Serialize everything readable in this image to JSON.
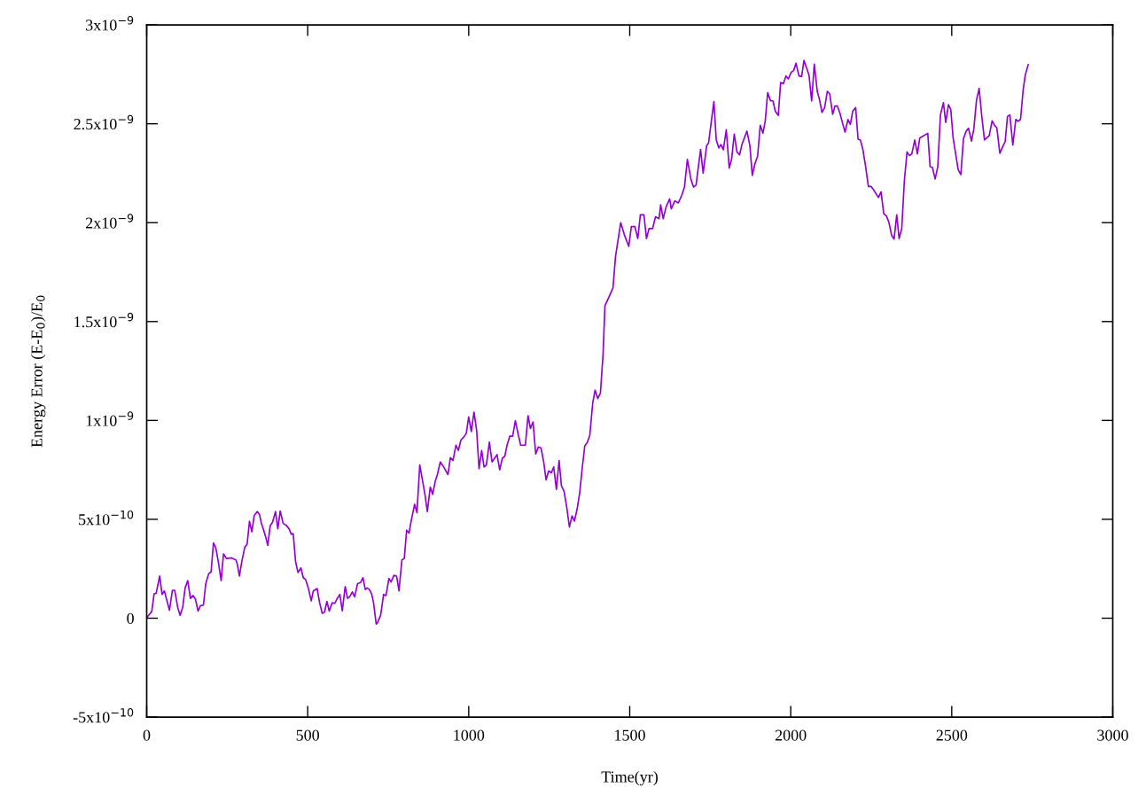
{
  "chart_data": {
    "type": "line",
    "xlabel": "Time(yr)",
    "ylabel": "Energy Error (E-E$_{0}$)/E$_{0}$",
    "xlim": [
      0,
      3000
    ],
    "xticks": [
      0,
      500,
      1000,
      1500,
      2000,
      2500,
      3000
    ],
    "ylim": [
      -5e-10,
      3e-09
    ],
    "yticks": [
      {
        "value": -5e-10,
        "label": "-5x10$^{−10}$"
      },
      0,
      {
        "value": 5e-10,
        "label": "5x10$^{−10}$"
      },
      {
        "value": 1e-09,
        "label": "1x10$^{−9}$"
      },
      {
        "value": 1.5e-09,
        "label": "1.5x10$^{−9}$"
      },
      {
        "value": 2e-09,
        "label": "2x10$^{−9}$"
      },
      {
        "value": 2.5e-09,
        "label": "2.5x10$^{−9}$"
      },
      {
        "value": 3e-09,
        "label": "3x10$^{−9}$"
      }
    ],
    "series": [
      {
        "color": "#9400d3",
        "x": [
          0,
          3.7,
          15.6,
          23.0,
          29.4,
          40.4,
          47.7,
          55.0,
          70.6,
          79.8,
          87.2,
          96.3,
          103.7,
          111.9,
          119.3,
          127.5,
          135.8,
          144.0,
          151.4,
          159.6,
          167.0,
          176.1,
          183.5,
          192.6,
          200.0,
          207.3,
          214.7,
          223.8,
          231.2,
          238.5,
          247.7,
          263.3,
          277.0,
          281.6,
          288.0,
          295.4,
          304.6,
          311.9,
          319.2,
          326.6,
          333.9,
          343.1,
          350.4,
          355.9,
          363.3,
          368.8,
          376.1,
          383.4,
          390.8,
          400.0,
          407.3,
          414.6,
          423.8,
          433.0,
          442.2,
          448.6,
          455.0,
          462.3,
          469.7,
          478.8,
          486.2,
          493.5,
          501.8,
          511.0,
          517.4,
          529.3,
          536.6,
          544.9,
          552.2,
          559.6,
          566.9,
          576.1,
          584.3,
          591.7,
          599.9,
          607.3,
          616.4,
          623.8,
          630.2,
          638.5,
          645.8,
          655.0,
          664.1,
          671.5,
          678.8,
          684.3,
          691.7,
          699.0,
          704.5,
          712.7,
          717.3,
          726.5,
          735.7,
          743.0,
          752.2,
          758.6,
          767.8,
          776.0,
          783.4,
          792.6,
          799.9,
          807.2,
          814.6,
          821.9,
          832.0,
          839.3,
          848,
          864.1,
          871.4,
          880.6,
          888.0,
          896.2,
          902.6,
          911.8,
          921.0,
          935.6,
          943.0,
          951.2,
          960.4,
          967.8,
          976.0,
          985.2,
          992.5,
          999.9,
          1008.1,
          1016.4,
          1024.6,
          1032.0,
          1040.2,
          1047.6,
          1054.9,
          1064.1,
          1072.3,
          1087.9,
          1096.2,
          1104.4,
          1111.8,
          1119.1,
          1127.4,
          1136.5,
          1144.8,
          1153.0,
          1161.3,
          1176.0,
          1184.2,
          1191.6,
          1199.8,
          1208.1,
          1216.3,
          1224.6,
          1232.8,
          1240.2,
          1248.4,
          1256.7,
          1264.0,
          1272.3,
          1280.6,
          1287.9,
          1296.1,
          1304.4,
          1312.7,
          1320.9,
          1328.3,
          1336.5,
          1344.8,
          1352.1,
          1360.4,
          1368.6,
          1376.0,
          1385.1,
          1392.5,
          1400.7,
          1409.0,
          1417.2,
          1423,
          1437,
          1448,
          1456,
          1472,
          1483,
          1497,
          1505,
          1516,
          1525,
          1533,
          1544,
          1552,
          1560,
          1571,
          1580,
          1591,
          1596,
          1604,
          1613,
          1624,
          1629,
          1640,
          1651,
          1662,
          1670,
          1679,
          1690,
          1698,
          1706,
          1720,
          1728,
          1739,
          1744.8,
          1761.3,
          1768.7,
          1776.9,
          1783.3,
          1790.7,
          1799.8,
          1809.0,
          1816.4,
          1824.6,
          1832.9,
          1841.1,
          1848.5,
          1864.0,
          1873.2,
          1880.6,
          1888.8,
          1897.1,
          1905.3,
          1913.6,
          1920.9,
          1928.3,
          1937.4,
          1944.8,
          1952.1,
          1961.3,
          1968.6,
          1976.9,
          1985.2,
          1992.5,
          2001.7,
          2009.0,
          2016.3,
          2025.5,
          2033.8,
          2041.1,
          2056.7,
          2064.9,
          2073.2,
          2082.4,
          2089.7,
          2097.0,
          2105.3,
          2113.6,
          2120.9,
          2130.1,
          2137.4,
          2144.8,
          2153.0,
          2161.3,
          2168.6,
          2177.8,
          2185.1,
          2192.4,
          2201.6,
          2209.0,
          2216.3,
          2223.6,
          2231.9,
          2241.1,
          2249.3,
          2256.7,
          2264.0,
          2272.3,
          2280.5,
          2288.8,
          2297.0,
          2304.4,
          2313.5,
          2320.9,
          2329.1,
          2336.5,
          2344.7,
          2353.0,
          2361.2,
          2368.6,
          2375.9,
          2385.1,
          2393.3,
          2400.7,
          2425.5,
          2432.8,
          2440.1,
          2448.4,
          2456.6,
          2464.9,
          2474.1,
          2481.4,
          2489.7,
          2497.0,
          2504.3,
          2519.9,
          2528.2,
          2536.4,
          2544.7,
          2552.0,
          2561.2,
          2568.5,
          2576.8,
          2585.0,
          2593.3,
          2601.6,
          2616.2,
          2625.4,
          2632.7,
          2640.1,
          2649.3,
          2657.5,
          2665.8,
          2673.1,
          2680.5,
          2689.6,
          2698.8,
          2706.1,
          2713.5,
          2721.8,
          2728.2,
          2737.4
        ],
        "values": [
          0,
          1e-11,
          3.3e-11,
          1.23e-10,
          1.26e-10,
          2.13e-10,
          1.2e-10,
          1.38e-10,
          4e-11,
          1.41e-10,
          1.41e-10,
          5.5e-11,
          1.5e-11,
          5.5e-11,
          1.53e-10,
          1.9e-10,
          1e-10,
          1.15e-10,
          9.6e-11,
          3.6e-11,
          6.3e-11,
          6.6e-11,
          1.75e-10,
          2.25e-10,
          2.34e-10,
          3.8e-10,
          3.56e-10,
          2.72e-10,
          1.9e-10,
          3.25e-10,
          3.02e-10,
          3.05e-10,
          2.95e-10,
          2.72e-10,
          2.13e-10,
          2.87e-10,
          3.59e-10,
          3.74e-10,
          4.9e-10,
          4.37e-10,
          5.19e-10,
          5.39e-10,
          5.24e-10,
          4.82e-10,
          4.45e-10,
          4.15e-10,
          3.68e-10,
          4.67e-10,
          4.85e-10,
          5.39e-10,
          4.52e-10,
          5.42e-10,
          4.79e-10,
          4.7e-10,
          4.52e-10,
          4.25e-10,
          4.28e-10,
          2.87e-10,
          2.31e-10,
          2.54e-10,
          2.05e-10,
          1.95e-10,
          1.53e-10,
          8.8e-11,
          1.38e-10,
          1.5e-10,
          8.1e-11,
          2.5e-11,
          3e-11,
          8.5e-11,
          3.6e-11,
          7.8e-11,
          7.5e-11,
          1e-10,
          1.2e-10,
          3.7e-11,
          1.6e-10,
          1e-10,
          1.08e-10,
          1.33e-10,
          1.08e-10,
          1.75e-10,
          1.8e-10,
          2.05e-10,
          1.45e-10,
          1.53e-10,
          1.45e-10,
          1.2e-10,
          7.8e-11,
          -3e-11,
          -2.1e-11,
          1.5e-11,
          1.2e-10,
          1.14e-10,
          2.01e-10,
          1.83e-10,
          2.17e-10,
          2.13e-10,
          1.38e-10,
          2.95e-10,
          3.02e-10,
          4.45e-10,
          4.3e-10,
          4.97e-10,
          5.76e-10,
          5.34e-10,
          7.75e-10,
          6.26e-10,
          5.39e-10,
          6.63e-10,
          6.26e-10,
          6.93e-10,
          7.26e-10,
          7.9e-10,
          7.68e-10,
          7.26e-10,
          8.12e-10,
          7.97e-10,
          8.75e-10,
          8.48e-10,
          9.02e-10,
          9.17e-10,
          9.35e-10,
          1.018e-09,
          9.44e-10,
          1.042e-09,
          9.5e-10,
          7.56e-10,
          8.48e-10,
          7.65e-10,
          7.75e-10,
          8.9e-10,
          7.9e-10,
          8.27e-10,
          7.5e-10,
          8.09e-10,
          8.18e-10,
          8.75e-10,
          9.2e-10,
          9.2e-10,
          9.99e-10,
          9.35e-10,
          8.75e-10,
          8.75e-10,
          1.024e-09,
          9.59e-10,
          9.92e-10,
          8.3e-10,
          8.66e-10,
          8.6e-10,
          7.9e-10,
          7e-10,
          7.45e-10,
          7.35e-10,
          7.65e-10,
          6.51e-10,
          7.97e-10,
          6.7e-10,
          6.41e-10,
          5.61e-10,
          4.61e-10,
          5.17e-10,
          4.91e-10,
          5.51e-10,
          6.36e-10,
          7.53e-10,
          8.72e-10,
          8.9e-10,
          9.24e-10,
          1.089e-09,
          1.153e-09,
          1.111e-09,
          1.138e-09,
          1.335e-09,
          1.58e-09,
          1.63e-09,
          1.67e-09,
          1.83e-09,
          2e-09,
          1.94e-09,
          1.88e-09,
          1.98e-09,
          1.98e-09,
          1.92e-09,
          2.04e-09,
          2.04e-09,
          1.92e-09,
          1.97e-09,
          1.97e-09,
          2.03e-09,
          2.02e-09,
          2.09e-09,
          2.02e-09,
          2.08e-09,
          2.12e-09,
          2.07e-09,
          2.11e-09,
          2.1e-09,
          2.14e-09,
          2.18e-09,
          2.32e-09,
          2.22e-09,
          2.18e-09,
          2.19e-09,
          2.37e-09,
          2.25e-09,
          2.39e-09,
          2.403e-09,
          2.612e-09,
          2.418e-09,
          2.378e-09,
          2.395e-09,
          2.369e-09,
          2.47e-09,
          2.276e-09,
          2.321e-09,
          2.448e-09,
          2.358e-09,
          2.343e-09,
          2.395e-09,
          2.463e-09,
          2.388e-09,
          2.239e-09,
          2.298e-09,
          2.336e-09,
          2.493e-09,
          2.452e-09,
          2.515e-09,
          2.657e-09,
          2.616e-09,
          2.616e-09,
          2.563e-09,
          2.542e-09,
          2.709e-09,
          2.702e-09,
          2.742e-09,
          2.727e-09,
          2.761e-09,
          2.769e-09,
          2.806e-09,
          2.742e-09,
          2.739e-09,
          2.821e-09,
          2.746e-09,
          2.615e-09,
          2.802e-09,
          2.664e-09,
          2.619e-09,
          2.557e-09,
          2.582e-09,
          2.664e-09,
          2.652e-09,
          2.548e-09,
          2.59e-09,
          2.59e-09,
          2.552e-09,
          2.5e-09,
          2.458e-09,
          2.522e-09,
          2.497e-09,
          2.563e-09,
          2.582e-09,
          2.422e-09,
          2.418e-09,
          2.373e-09,
          2.291e-09,
          2.183e-09,
          2.183e-09,
          2.168e-09,
          2.149e-09,
          2.127e-09,
          2.156e-09,
          2.045e-09,
          2.034e-09,
          2.004e-09,
          1.935e-09,
          1.917e-09,
          2.04e-09,
          1.92e-09,
          1.97e-09,
          2.216e-09,
          2.358e-09,
          2.339e-09,
          2.348e-09,
          2.418e-09,
          2.348e-09,
          2.428e-09,
          2.452e-09,
          2.283e-09,
          2.279e-09,
          2.221e-09,
          2.283e-09,
          2.545e-09,
          2.607e-09,
          2.507e-09,
          2.597e-09,
          2.572e-09,
          2.428e-09,
          2.268e-09,
          2.243e-09,
          2.425e-09,
          2.463e-09,
          2.478e-09,
          2.413e-09,
          2.473e-09,
          2.619e-09,
          2.679e-09,
          2.537e-09,
          2.418e-09,
          2.44e-09,
          2.515e-09,
          2.493e-09,
          2.478e-09,
          2.351e-09,
          2.381e-09,
          2.41e-09,
          2.537e-09,
          2.545e-09,
          2.392e-09,
          2.522e-09,
          2.512e-09,
          2.522e-09,
          2.672e-09,
          2.746e-09,
          2.799e-09
        ]
      }
    ]
  }
}
